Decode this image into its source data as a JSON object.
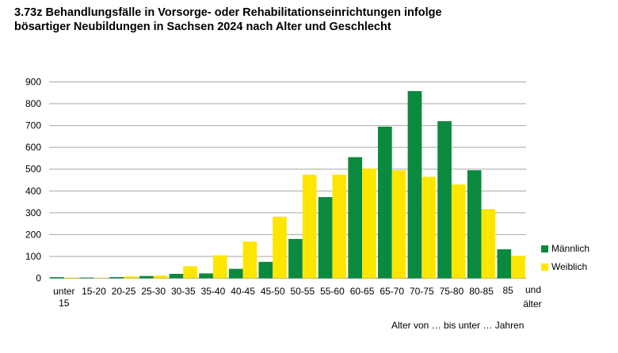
{
  "title": "3.73z Behandlungsfälle in Vorsorge- oder Rehabilitationseinrichtungen infolge\nbösartiger Neubildungen in Sachsen 2024 nach Alter und Geschlecht",
  "colors": {
    "maennlich": "#0b8a3f",
    "weiblich": "#ffe600",
    "grid": "#a6a6a6"
  },
  "chart_data": {
    "type": "bar",
    "title": "3.73z Behandlungsfälle in Vorsorge- oder Rehabilitationseinrichtungen infolge bösartiger Neubildungen in Sachsen 2024 nach Alter und Geschlecht",
    "categories": [
      "unter 15",
      "15-20",
      "20-25",
      "25-30",
      "30-35",
      "35-40",
      "40-45",
      "45-50",
      "50-55",
      "55-60",
      "60-65",
      "65-70",
      "70-75",
      "75-80",
      "80-85",
      "85 und älter"
    ],
    "series": [
      {
        "name": "Männlich",
        "values": [
          5,
          3,
          5,
          10,
          20,
          22,
          43,
          75,
          180,
          372,
          555,
          695,
          858,
          720,
          495,
          133
        ]
      },
      {
        "name": "Weiblich",
        "values": [
          3,
          2,
          8,
          12,
          55,
          105,
          168,
          282,
          475,
          475,
          503,
          495,
          465,
          430,
          317,
          103
        ]
      }
    ],
    "xlabel": "Alter von … bis unter … Jahren",
    "ylabel": "",
    "ylim": [
      0,
      900
    ],
    "yticks": [
      0,
      100,
      200,
      300,
      400,
      500,
      600,
      700,
      800,
      900
    ],
    "grid": true,
    "legend": "right"
  }
}
